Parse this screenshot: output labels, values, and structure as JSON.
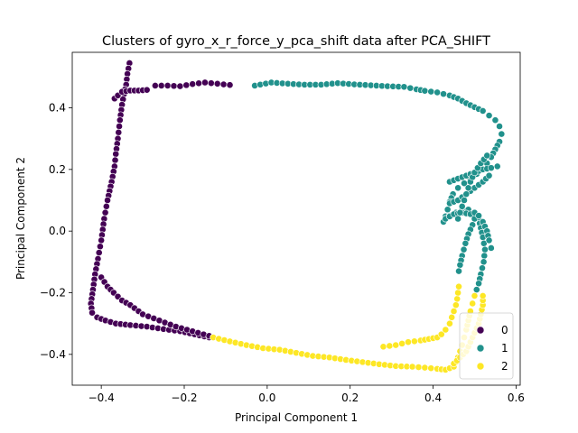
{
  "chart_data": {
    "type": "scatter",
    "title": "Clusters of gyro_x_r_force_y_pca_shift data after PCA_SHIFT",
    "xlabel": "Principal Component 1",
    "ylabel": "Principal Component 2",
    "xlim": [
      -0.47,
      0.61
    ],
    "ylim": [
      -0.5,
      0.58
    ],
    "xticks": [
      -0.4,
      -0.2,
      0.0,
      0.2,
      0.4,
      0.6
    ],
    "xtick_labels": [
      "−0.4",
      "−0.2",
      "0.0",
      "0.2",
      "0.4",
      "0.6"
    ],
    "yticks": [
      -0.4,
      -0.2,
      0.0,
      0.2,
      0.4
    ],
    "ytick_labels": [
      "−0.4",
      "−0.2",
      "0.0",
      "0.2",
      "0.4"
    ],
    "grid": false,
    "legend_position": "lower-right",
    "series": [
      {
        "name": "0",
        "color": "#440154",
        "paths": [
          [
            [
              -0.332,
              0.545
            ],
            [
              -0.337,
              0.51
            ],
            [
              -0.34,
              0.475
            ],
            [
              -0.345,
              0.445
            ],
            [
              -0.35,
              0.41
            ],
            [
              -0.355,
              0.36
            ],
            [
              -0.36,
              0.3
            ],
            [
              -0.365,
              0.25
            ],
            [
              -0.368,
              0.21
            ],
            [
              -0.375,
              0.16
            ],
            [
              -0.385,
              0.1
            ],
            [
              -0.393,
              0.04
            ],
            [
              -0.4,
              -0.03
            ],
            [
              -0.408,
              -0.09
            ],
            [
              -0.415,
              -0.14
            ],
            [
              -0.42,
              -0.19
            ],
            [
              -0.425,
              -0.235
            ],
            [
              -0.422,
              -0.265
            ],
            [
              -0.41,
              -0.28
            ],
            [
              -0.39,
              -0.29
            ],
            [
              -0.365,
              -0.3
            ],
            [
              -0.33,
              -0.305
            ],
            [
              -0.29,
              -0.31
            ],
            [
              -0.25,
              -0.318
            ],
            [
              -0.21,
              -0.325
            ],
            [
              -0.175,
              -0.335
            ],
            [
              -0.14,
              -0.345
            ]
          ],
          [
            [
              -0.368,
              0.43
            ],
            [
              -0.36,
              0.44
            ],
            [
              -0.35,
              0.452
            ],
            [
              -0.33,
              0.456
            ],
            [
              -0.31,
              0.456
            ],
            [
              -0.29,
              0.458
            ]
          ],
          [
            [
              -0.27,
              0.472
            ],
            [
              -0.24,
              0.472
            ],
            [
              -0.21,
              0.47
            ],
            [
              -0.18,
              0.477
            ],
            [
              -0.15,
              0.482
            ],
            [
              -0.12,
              0.478
            ],
            [
              -0.09,
              0.474
            ]
          ],
          [
            [
              -0.4,
              -0.15
            ],
            [
              -0.385,
              -0.18
            ],
            [
              -0.37,
              -0.2
            ],
            [
              -0.35,
              -0.225
            ],
            [
              -0.33,
              -0.24
            ],
            [
              -0.3,
              -0.27
            ],
            [
              -0.26,
              -0.29
            ],
            [
              -0.22,
              -0.31
            ],
            [
              -0.18,
              -0.325
            ],
            [
              -0.14,
              -0.34
            ]
          ]
        ]
      },
      {
        "name": "1",
        "color": "#21918c",
        "paths": [
          [
            [
              -0.03,
              0.472
            ],
            [
              0.01,
              0.482
            ],
            [
              0.05,
              0.478
            ],
            [
              0.09,
              0.475
            ],
            [
              0.13,
              0.475
            ],
            [
              0.17,
              0.48
            ],
            [
              0.21,
              0.476
            ],
            [
              0.25,
              0.473
            ],
            [
              0.29,
              0.47
            ],
            [
              0.33,
              0.468
            ],
            [
              0.36,
              0.46
            ],
            [
              0.38,
              0.455
            ],
            [
              0.41,
              0.45
            ],
            [
              0.44,
              0.44
            ],
            [
              0.46,
              0.43
            ],
            [
              0.48,
              0.415
            ],
            [
              0.5,
              0.402
            ],
            [
              0.52,
              0.39
            ],
            [
              0.535,
              0.375
            ],
            [
              0.55,
              0.36
            ],
            [
              0.56,
              0.34
            ],
            [
              0.565,
              0.315
            ],
            [
              0.56,
              0.29
            ],
            [
              0.55,
              0.265
            ],
            [
              0.54,
              0.24
            ],
            [
              0.53,
              0.22
            ],
            [
              0.52,
              0.2
            ],
            [
              0.505,
              0.185
            ],
            [
              0.49,
              0.17
            ],
            [
              0.475,
              0.155
            ],
            [
              0.46,
              0.14
            ],
            [
              0.448,
              0.12
            ],
            [
              0.44,
              0.095
            ],
            [
              0.435,
              0.07
            ],
            [
              0.43,
              0.048
            ],
            [
              0.425,
              0.03
            ]
          ],
          [
            [
              0.43,
              0.04
            ],
            [
              0.44,
              0.05
            ],
            [
              0.455,
              0.06
            ],
            [
              0.47,
              0.07
            ],
            [
              0.485,
              0.07
            ],
            [
              0.5,
              0.06
            ],
            [
              0.51,
              0.04
            ],
            [
              0.515,
              0.01
            ],
            [
              0.52,
              -0.02
            ],
            [
              0.525,
              -0.06
            ],
            [
              0.522,
              -0.1
            ],
            [
              0.515,
              -0.14
            ],
            [
              0.51,
              -0.17
            ],
            [
              0.505,
              -0.19
            ]
          ],
          [
            [
              0.43,
              0.04
            ],
            [
              0.45,
              0.055
            ],
            [
              0.47,
              0.06
            ],
            [
              0.49,
              0.055
            ],
            [
              0.5,
              0.04
            ],
            [
              0.495,
              0.02
            ],
            [
              0.485,
              -0.01
            ],
            [
              0.478,
              -0.04
            ],
            [
              0.47,
              -0.08
            ],
            [
              0.465,
              -0.11
            ],
            [
              0.462,
              -0.13
            ]
          ],
          [
            [
              0.44,
              0.16
            ],
            [
              0.46,
              0.17
            ],
            [
              0.48,
              0.18
            ],
            [
              0.5,
              0.19
            ],
            [
              0.52,
              0.2
            ],
            [
              0.54,
              0.205
            ],
            [
              0.555,
              0.21
            ]
          ],
          [
            [
              0.44,
              0.09
            ],
            [
              0.46,
              0.1
            ],
            [
              0.48,
              0.12
            ],
            [
              0.5,
              0.14
            ],
            [
              0.52,
              0.16
            ],
            [
              0.535,
              0.18
            ]
          ],
          [
            [
              0.46,
              0.04
            ],
            [
              0.47,
              0.08
            ],
            [
              0.48,
              0.12
            ],
            [
              0.49,
              0.16
            ],
            [
              0.5,
              0.19
            ],
            [
              0.515,
              0.22
            ],
            [
              0.53,
              0.245
            ]
          ],
          [
            [
              0.5,
              0.06
            ],
            [
              0.51,
              0.05
            ],
            [
              0.52,
              0.03
            ],
            [
              0.53,
              0.0
            ],
            [
              0.535,
              -0.03
            ],
            [
              0.54,
              -0.055
            ]
          ]
        ]
      },
      {
        "name": "2",
        "color": "#fde725",
        "paths": [
          [
            [
              -0.13,
              -0.345
            ],
            [
              -0.09,
              -0.358
            ],
            [
              -0.05,
              -0.37
            ],
            [
              -0.01,
              -0.38
            ],
            [
              0.03,
              -0.385
            ],
            [
              0.07,
              -0.395
            ],
            [
              0.11,
              -0.405
            ],
            [
              0.15,
              -0.41
            ],
            [
              0.19,
              -0.418
            ],
            [
              0.23,
              -0.425
            ],
            [
              0.27,
              -0.432
            ],
            [
              0.31,
              -0.438
            ],
            [
              0.35,
              -0.44
            ],
            [
              0.38,
              -0.443
            ],
            [
              0.41,
              -0.447
            ],
            [
              0.43,
              -0.45
            ],
            [
              0.44,
              -0.445
            ],
            [
              0.45,
              -0.44
            ],
            [
              0.455,
              -0.425
            ],
            [
              0.46,
              -0.41
            ],
            [
              0.465,
              -0.39
            ],
            [
              0.47,
              -0.37
            ],
            [
              0.475,
              -0.345
            ],
            [
              0.48,
              -0.32
            ],
            [
              0.485,
              -0.29
            ],
            [
              0.49,
              -0.26
            ],
            [
              0.495,
              -0.235
            ],
            [
              0.5,
              -0.21
            ]
          ],
          [
            [
              0.28,
              -0.375
            ],
            [
              0.31,
              -0.37
            ],
            [
              0.34,
              -0.36
            ],
            [
              0.37,
              -0.355
            ],
            [
              0.39,
              -0.35
            ],
            [
              0.41,
              -0.345
            ],
            [
              0.42,
              -0.335
            ],
            [
              0.43,
              -0.32
            ],
            [
              0.44,
              -0.3
            ],
            [
              0.445,
              -0.28
            ],
            [
              0.45,
              -0.26
            ],
            [
              0.455,
              -0.24
            ],
            [
              0.458,
              -0.22
            ],
            [
              0.46,
              -0.2
            ],
            [
              0.462,
              -0.18
            ]
          ],
          [
            [
              0.45,
              -0.43
            ],
            [
              0.465,
              -0.41
            ],
            [
              0.48,
              -0.39
            ],
            [
              0.49,
              -0.36
            ],
            [
              0.5,
              -0.33
            ],
            [
              0.51,
              -0.3
            ],
            [
              0.515,
              -0.27
            ],
            [
              0.52,
              -0.24
            ],
            [
              0.52,
              -0.21
            ]
          ]
        ]
      }
    ]
  }
}
